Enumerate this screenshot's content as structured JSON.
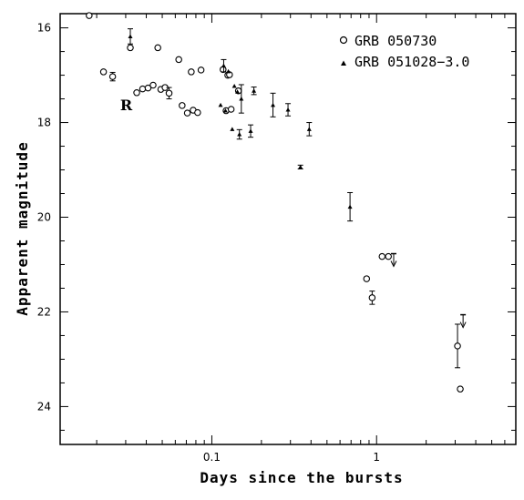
{
  "chart_data": {
    "type": "scatter",
    "xlabel": "Days since the bursts",
    "ylabel": "Apparent magnitude",
    "x_scale": "log",
    "xlim": [
      0.012,
      7.0
    ],
    "ylim": [
      24.8,
      15.7
    ],
    "y_inverted": true,
    "x_ticks": [
      0.1,
      1
    ],
    "x_tick_labels": [
      "0.1",
      "1"
    ],
    "y_ticks": [
      16,
      18,
      20,
      22,
      24
    ],
    "y_tick_labels": [
      "16",
      "18",
      "20",
      "22",
      "24"
    ],
    "grid": false,
    "legend_position": "top-right",
    "annotations": [
      {
        "text": "R",
        "x": 0.03,
        "y": 17.62
      }
    ],
    "series": [
      {
        "name": "GRB 050730",
        "marker": "open-circle",
        "points": [
          {
            "x": 0.018,
            "y": 15.74
          },
          {
            "x": 0.022,
            "y": 16.93
          },
          {
            "x": 0.025,
            "y": 17.03,
            "err": 0.09
          },
          {
            "x": 0.032,
            "y": 16.42
          },
          {
            "x": 0.035,
            "y": 17.37
          },
          {
            "x": 0.038,
            "y": 17.29
          },
          {
            "x": 0.041,
            "y": 17.27
          },
          {
            "x": 0.044,
            "y": 17.21
          },
          {
            "x": 0.047,
            "y": 16.42
          },
          {
            "x": 0.049,
            "y": 17.3
          },
          {
            "x": 0.052,
            "y": 17.26
          },
          {
            "x": 0.055,
            "y": 17.38,
            "err": 0.12
          },
          {
            "x": 0.063,
            "y": 16.67
          },
          {
            "x": 0.066,
            "y": 17.64
          },
          {
            "x": 0.071,
            "y": 17.8
          },
          {
            "x": 0.075,
            "y": 16.93
          },
          {
            "x": 0.077,
            "y": 17.74
          },
          {
            "x": 0.082,
            "y": 17.79
          },
          {
            "x": 0.086,
            "y": 16.89
          },
          {
            "x": 0.117,
            "y": 16.88
          },
          {
            "x": 0.122,
            "y": 17.75
          },
          {
            "x": 0.125,
            "y": 17.0
          },
          {
            "x": 0.128,
            "y": 16.99
          },
          {
            "x": 0.131,
            "y": 17.72
          },
          {
            "x": 0.145,
            "y": 17.33
          },
          {
            "x": 0.87,
            "y": 21.3
          },
          {
            "x": 0.94,
            "y": 21.7,
            "err": 0.14
          },
          {
            "x": 1.08,
            "y": 20.83
          },
          {
            "x": 1.18,
            "y": 20.83
          },
          {
            "x": 3.1,
            "y": 22.72,
            "err": 0.46
          },
          {
            "x": 3.22,
            "y": 23.63
          }
        ]
      },
      {
        "name": "GRB 051028−3.0",
        "marker": "filled-triangle",
        "points": [
          {
            "x": 0.032,
            "y": 16.18,
            "err": 0.16
          },
          {
            "x": 0.113,
            "y": 17.63
          },
          {
            "x": 0.118,
            "y": 16.8,
            "err": 0.13
          },
          {
            "x": 0.121,
            "y": 17.75
          },
          {
            "x": 0.126,
            "y": 16.92
          },
          {
            "x": 0.133,
            "y": 18.14
          },
          {
            "x": 0.137,
            "y": 17.23
          },
          {
            "x": 0.143,
            "y": 17.35
          },
          {
            "x": 0.147,
            "y": 18.25,
            "err": 0.1
          },
          {
            "x": 0.151,
            "y": 17.5,
            "err": 0.3
          },
          {
            "x": 0.172,
            "y": 18.18,
            "err": 0.13
          },
          {
            "x": 0.18,
            "y": 17.33,
            "err": 0.08
          },
          {
            "x": 0.235,
            "y": 17.63,
            "err": 0.25
          },
          {
            "x": 0.29,
            "y": 17.73,
            "err": 0.13
          },
          {
            "x": 0.345,
            "y": 18.94,
            "err": 0.04
          },
          {
            "x": 0.39,
            "y": 18.14,
            "err": 0.14
          },
          {
            "x": 0.69,
            "y": 19.78,
            "err": 0.3
          }
        ]
      }
    ],
    "upper_limits": [
      {
        "series": "GRB 051028−3.0",
        "x": 1.27,
        "y": 20.77
      },
      {
        "series": "GRB 051028−3.0",
        "x": 3.35,
        "y": 22.06
      }
    ]
  }
}
